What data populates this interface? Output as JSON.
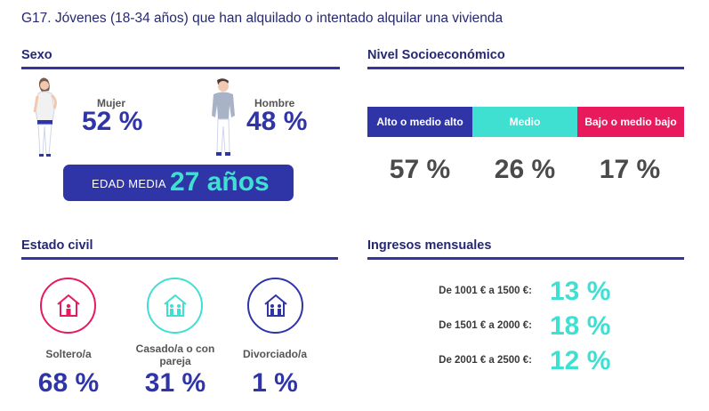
{
  "title": "G17. Jóvenes (18-34 años) que han alquilado o intentado alquilar una vivienda",
  "colors": {
    "primary": "#2f35a7",
    "turquoise": "#3fe0d2",
    "pink": "#e8195d",
    "gray_text": "#4a4a4a"
  },
  "sexo": {
    "title": "Sexo",
    "mujer_label": "Mujer",
    "mujer_value": "52 %",
    "hombre_label": "Hombre",
    "hombre_value": "48 %",
    "edad_label": "EDAD MEDIA",
    "edad_value": "27 años"
  },
  "nivel": {
    "title": "Nivel Socioeconómico",
    "segments": [
      {
        "label": "Alto o medio alto",
        "value": "57 %",
        "color": "#2f35a7"
      },
      {
        "label": "Medio",
        "value": "26 %",
        "color": "#3fe0d2"
      },
      {
        "label": "Bajo o medio bajo",
        "value": "17 %",
        "color": "#e8195d"
      }
    ]
  },
  "estado": {
    "title": "Estado civil",
    "items": [
      {
        "label": "Soltero/a",
        "value": "68 %",
        "icon": "house-single-icon",
        "color": "#e8195d"
      },
      {
        "label": "Casado/a o con pareja",
        "value": "31 %",
        "icon": "house-couple-icon",
        "color": "#3fe0d2"
      },
      {
        "label": "Divorciado/a",
        "value": "1 %",
        "icon": "house-couple-icon",
        "color": "#2f35a7"
      }
    ]
  },
  "ingresos": {
    "title": "Ingresos mensuales",
    "items": [
      {
        "label": "De 1001 € a 1500 €:",
        "value": "13 %"
      },
      {
        "label": "De 1501 € a 2000 €:",
        "value": "18 %"
      },
      {
        "label": "De 2001 € a 2500 €:",
        "value": "12 %"
      }
    ]
  },
  "chart_data": [
    {
      "type": "table",
      "title": "Sexo",
      "categories": [
        "Mujer",
        "Hombre"
      ],
      "values": [
        52,
        48
      ],
      "unit": "%"
    },
    {
      "type": "bar",
      "title": "Nivel Socioeconómico",
      "categories": [
        "Alto o medio alto",
        "Medio",
        "Bajo o medio bajo"
      ],
      "values": [
        57,
        26,
        17
      ],
      "unit": "%"
    },
    {
      "type": "table",
      "title": "Estado civil",
      "categories": [
        "Soltero/a",
        "Casado/a o con pareja",
        "Divorciado/a"
      ],
      "values": [
        68,
        31,
        1
      ],
      "unit": "%"
    },
    {
      "type": "table",
      "title": "Ingresos mensuales",
      "categories": [
        "De 1001 € a 1500 €:",
        "De 1501 € a 2000 €:",
        "De 2001 € a 2500 €:"
      ],
      "values": [
        13,
        18,
        12
      ],
      "unit": "%"
    }
  ]
}
